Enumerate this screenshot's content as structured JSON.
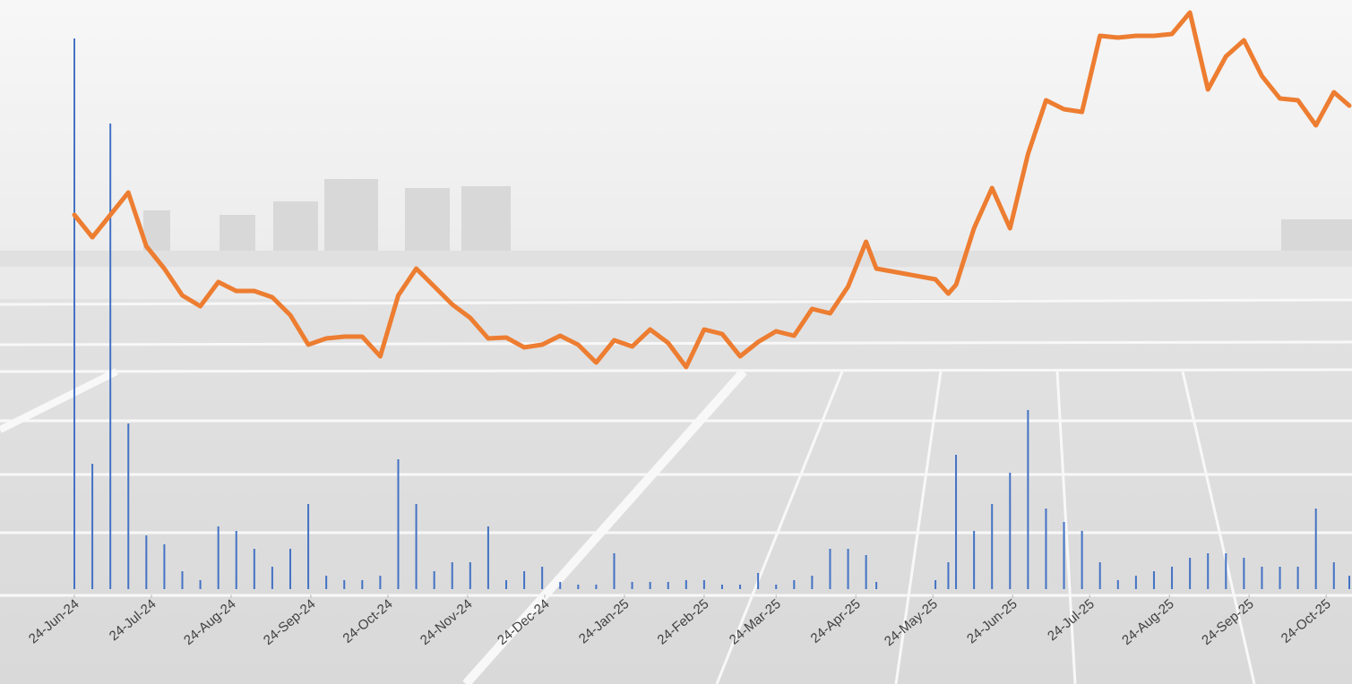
{
  "chart_data": {
    "type": "line",
    "x": [
      "2024-06-24",
      "2024-07-01",
      "2024-07-08",
      "2024-07-15",
      "2024-07-22",
      "2024-07-29",
      "2024-08-05",
      "2024-08-12",
      "2024-08-19",
      "2024-08-26",
      "2024-09-02",
      "2024-09-09",
      "2024-09-16",
      "2024-09-23",
      "2024-09-30",
      "2024-10-07",
      "2024-10-14",
      "2024-10-21",
      "2024-10-28",
      "2024-11-04",
      "2024-11-11",
      "2024-11-18",
      "2024-11-25",
      "2024-12-02",
      "2024-12-09",
      "2024-12-16",
      "2024-12-23",
      "2024-12-30",
      "2025-01-06",
      "2025-01-13",
      "2025-01-20",
      "2025-01-27",
      "2025-02-03",
      "2025-02-10",
      "2025-02-17",
      "2025-02-24",
      "2025-03-03",
      "2025-03-10",
      "2025-03-17",
      "2025-03-24",
      "2025-03-31",
      "2025-04-07",
      "2025-04-14",
      "2025-04-21",
      "2025-04-28",
      "2025-05-02",
      "2025-05-25",
      "2025-05-30",
      "2025-06-02",
      "2025-06-09",
      "2025-06-16",
      "2025-06-23",
      "2025-06-30",
      "2025-07-07",
      "2025-07-14",
      "2025-07-21",
      "2025-07-28",
      "2025-08-04",
      "2025-08-11",
      "2025-08-18",
      "2025-08-25",
      "2025-09-01",
      "2025-09-08",
      "2025-09-15",
      "2025-09-22",
      "2025-09-29",
      "2025-10-06",
      "2025-10-13",
      "2025-10-20",
      "2025-10-27",
      "2025-11-02"
    ],
    "series": [
      {
        "type": "line",
        "color": "#ed7d31",
        "values": [
          220,
          195,
          220,
          245,
          185,
          160,
          130,
          118,
          145,
          135,
          135,
          128,
          108,
          75,
          82,
          84,
          84,
          62,
          130,
          160,
          140,
          120,
          105,
          82,
          83,
          72,
          75,
          85,
          75,
          55,
          80,
          73,
          92,
          77,
          50,
          92,
          87,
          62,
          78,
          90,
          85,
          115,
          110,
          140,
          190,
          160,
          148,
          132,
          142,
          205,
          250,
          205,
          288,
          348,
          338,
          335,
          420,
          418,
          420,
          420,
          422,
          446,
          360,
          397,
          415,
          375,
          350,
          348,
          320,
          357,
          342
        ]
      },
      {
        "type": "bar",
        "axis": "y2",
        "color": "#4472c4",
        "values": [
          615,
          140,
          520,
          185,
          60,
          50,
          20,
          10,
          70,
          65,
          45,
          25,
          45,
          95,
          15,
          10,
          10,
          15,
          145,
          95,
          20,
          30,
          30,
          70,
          10,
          20,
          25,
          8,
          5,
          5,
          40,
          8,
          8,
          8,
          10,
          10,
          5,
          5,
          18,
          5,
          10,
          15,
          45,
          45,
          38,
          8,
          10,
          30,
          150,
          65,
          95,
          130,
          200,
          90,
          75,
          65,
          30,
          10,
          15,
          20,
          25,
          35,
          40,
          40,
          35,
          25,
          25,
          25,
          90,
          30,
          15
        ]
      }
    ],
    "xlim": [
      "2024-06-24",
      "2025-11-02"
    ],
    "xticks": [
      {
        "value": "2024-06-24",
        "label": "24-Jun-24"
      },
      {
        "value": "2024-07-24",
        "label": "24-Jul-24"
      },
      {
        "value": "2024-08-24",
        "label": "24-Aug-24"
      },
      {
        "value": "2024-09-24",
        "label": "24-Sep-24"
      },
      {
        "value": "2024-10-24",
        "label": "24-Oct-24"
      },
      {
        "value": "2024-11-24",
        "label": "24-Nov-24"
      },
      {
        "value": "2024-12-24",
        "label": "24-Dec-24"
      },
      {
        "value": "2025-01-24",
        "label": "24-Jan-25"
      },
      {
        "value": "2025-02-24",
        "label": "24-Feb-25"
      },
      {
        "value": "2025-03-24",
        "label": "24-Mar-25"
      },
      {
        "value": "2025-04-24",
        "label": "24-Apr-25"
      },
      {
        "value": "2025-05-24",
        "label": "24-May-25"
      },
      {
        "value": "2025-06-24",
        "label": "24-Jun-25"
      },
      {
        "value": "2025-07-24",
        "label": "24-Jul-25"
      },
      {
        "value": "2025-08-24",
        "label": "24-Aug-25"
      },
      {
        "value": "2025-09-24",
        "label": "24-Sep-25"
      },
      {
        "value": "2025-10-24",
        "label": "24-Oct-25"
      }
    ],
    "ylim": [
      0,
      460
    ],
    "y2lim": [
      0,
      658
    ]
  }
}
